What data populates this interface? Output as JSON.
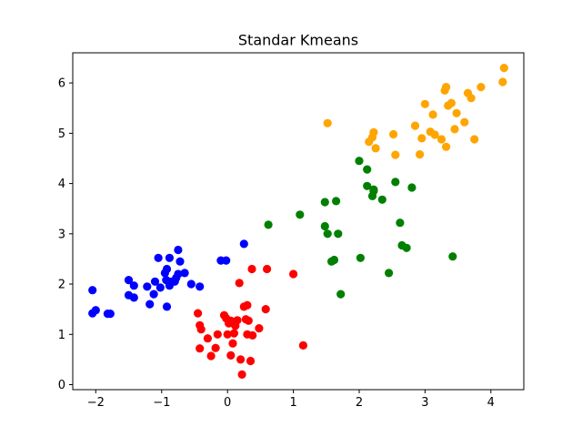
{
  "chart_data": {
    "type": "scatter",
    "title": "Standar Kmeans",
    "xlabel": "",
    "ylabel": "",
    "xlim": [
      -2.35,
      4.5
    ],
    "ylim": [
      -0.1,
      6.6
    ],
    "xticks": [
      -2,
      -1,
      0,
      1,
      2,
      3,
      4
    ],
    "yticks": [
      0,
      1,
      2,
      3,
      4,
      5,
      6
    ],
    "grid": false,
    "legend": "none",
    "series": [
      {
        "color": "#0000ff",
        "points": [
          [
            -2.05,
            1.88
          ],
          [
            -2.05,
            1.42
          ],
          [
            -2.0,
            1.48
          ],
          [
            -1.82,
            1.41
          ],
          [
            -1.78,
            1.41
          ],
          [
            -1.5,
            2.08
          ],
          [
            -1.5,
            1.78
          ],
          [
            -1.42,
            1.97
          ],
          [
            -1.42,
            1.73
          ],
          [
            -1.22,
            1.95
          ],
          [
            -1.18,
            1.6
          ],
          [
            -1.12,
            1.8
          ],
          [
            -1.1,
            2.05
          ],
          [
            -1.05,
            2.52
          ],
          [
            -1.02,
            1.93
          ],
          [
            -0.95,
            2.22
          ],
          [
            -0.93,
            2.08
          ],
          [
            -0.92,
            2.3
          ],
          [
            -0.92,
            1.55
          ],
          [
            -0.88,
            2.52
          ],
          [
            -0.88,
            1.97
          ],
          [
            -0.85,
            2.05
          ],
          [
            -0.8,
            2.05
          ],
          [
            -0.78,
            2.12
          ],
          [
            -0.75,
            2.2
          ],
          [
            -0.75,
            2.68
          ],
          [
            -0.72,
            2.45
          ],
          [
            -0.65,
            2.22
          ],
          [
            -0.55,
            2.0
          ],
          [
            -0.42,
            1.95
          ],
          [
            -0.1,
            2.47
          ],
          [
            -0.02,
            2.47
          ],
          [
            0.25,
            2.8
          ]
        ]
      },
      {
        "color": "#ff0000",
        "points": [
          [
            -0.45,
            1.42
          ],
          [
            -0.42,
            1.18
          ],
          [
            -0.4,
            1.1
          ],
          [
            -0.42,
            0.72
          ],
          [
            -0.3,
            0.92
          ],
          [
            -0.25,
            0.57
          ],
          [
            -0.18,
            0.73
          ],
          [
            -0.15,
            1.0
          ],
          [
            -0.05,
            1.38
          ],
          [
            -0.02,
            1.32
          ],
          [
            0.0,
            1.0
          ],
          [
            0.02,
            1.22
          ],
          [
            0.05,
            1.27
          ],
          [
            0.08,
            0.82
          ],
          [
            0.1,
            1.02
          ],
          [
            0.12,
            1.17
          ],
          [
            0.15,
            1.28
          ],
          [
            0.18,
            2.02
          ],
          [
            0.2,
            0.5
          ],
          [
            0.22,
            0.2
          ],
          [
            0.25,
            1.55
          ],
          [
            0.28,
            1.3
          ],
          [
            0.3,
            1.58
          ],
          [
            0.3,
            1.0
          ],
          [
            0.32,
            1.27
          ],
          [
            0.35,
            0.47
          ],
          [
            0.37,
            2.3
          ],
          [
            0.38,
            0.98
          ],
          [
            0.48,
            1.12
          ],
          [
            0.58,
            1.5
          ],
          [
            0.6,
            2.3
          ],
          [
            1.0,
            2.2
          ],
          [
            1.15,
            0.78
          ],
          [
            0.05,
            0.58
          ]
        ]
      },
      {
        "color": "#008000",
        "points": [
          [
            0.62,
            3.18
          ],
          [
            1.1,
            3.38
          ],
          [
            1.48,
            3.63
          ],
          [
            1.48,
            3.15
          ],
          [
            1.52,
            3.0
          ],
          [
            1.58,
            2.45
          ],
          [
            1.62,
            2.48
          ],
          [
            1.65,
            3.65
          ],
          [
            1.68,
            3.0
          ],
          [
            1.72,
            1.8
          ],
          [
            2.0,
            4.45
          ],
          [
            2.02,
            2.52
          ],
          [
            2.12,
            4.28
          ],
          [
            2.12,
            3.95
          ],
          [
            2.2,
            3.75
          ],
          [
            2.22,
            3.85
          ],
          [
            2.22,
            3.88
          ],
          [
            2.35,
            3.68
          ],
          [
            2.45,
            2.22
          ],
          [
            2.55,
            4.03
          ],
          [
            2.62,
            3.22
          ],
          [
            2.65,
            2.77
          ],
          [
            2.72,
            2.72
          ],
          [
            2.8,
            3.92
          ],
          [
            3.42,
            2.55
          ]
        ]
      },
      {
        "color": "#ffa500",
        "points": [
          [
            1.52,
            5.2
          ],
          [
            2.15,
            4.83
          ],
          [
            2.2,
            4.92
          ],
          [
            2.22,
            5.02
          ],
          [
            2.25,
            4.7
          ],
          [
            2.52,
            4.98
          ],
          [
            2.55,
            4.57
          ],
          [
            2.85,
            5.15
          ],
          [
            2.92,
            4.58
          ],
          [
            2.95,
            4.9
          ],
          [
            3.0,
            5.58
          ],
          [
            3.08,
            5.03
          ],
          [
            3.12,
            5.37
          ],
          [
            3.15,
            4.97
          ],
          [
            3.25,
            4.88
          ],
          [
            3.3,
            5.85
          ],
          [
            3.32,
            5.92
          ],
          [
            3.35,
            5.55
          ],
          [
            3.4,
            5.6
          ],
          [
            3.45,
            5.08
          ],
          [
            3.48,
            5.4
          ],
          [
            3.6,
            5.22
          ],
          [
            3.65,
            5.8
          ],
          [
            3.7,
            5.7
          ],
          [
            3.75,
            4.88
          ],
          [
            3.85,
            5.92
          ],
          [
            4.18,
            6.02
          ],
          [
            4.2,
            6.3
          ],
          [
            3.32,
            4.73
          ]
        ]
      }
    ]
  }
}
